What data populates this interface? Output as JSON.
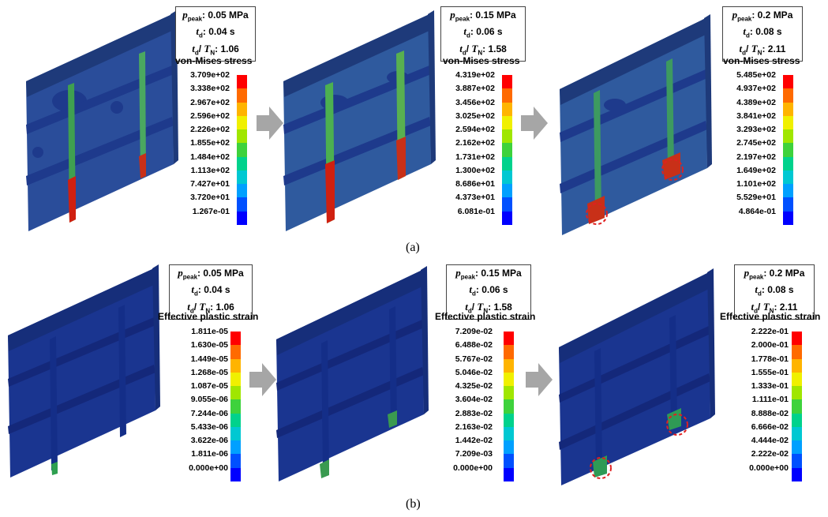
{
  "colors": {
    "scale": [
      "#ff0000",
      "#ff6a00",
      "#ffb400",
      "#f0f000",
      "#a0e600",
      "#3ed23c",
      "#00d28c",
      "#00c8d2",
      "#00a0ff",
      "#0050ff",
      "#0000ff"
    ],
    "structure": "#1e3a7a",
    "arrow": "#a6a6a6",
    "highlight": "#e02020"
  },
  "rows": [
    {
      "caption": "(a)",
      "legend_title": "von-Mises stress",
      "panels": [
        {
          "p_label": "p",
          "p_sub": "peak",
          "p_value": ": 0.05 MPa",
          "td_label": "t",
          "td_sub": "d",
          "td_value": ": 0.04 s",
          "ratio_label": "t",
          "ratio_sub": "d",
          "ratio_sep": "/ ",
          "ratio_label2": "T",
          "ratio_sub2": "N",
          "ratio_value": ": 1.06",
          "ticks": [
            "3.709e+02",
            "3.338e+02",
            "2.967e+02",
            "2.596e+02",
            "2.226e+02",
            "1.855e+02",
            "1.484e+02",
            "1.113e+02",
            "7.427e+01",
            "3.720e+01",
            "1.267e-01"
          ]
        },
        {
          "p_label": "p",
          "p_sub": "peak",
          "p_value": ": 0.15 MPa",
          "td_label": "t",
          "td_sub": "d",
          "td_value": ": 0.06 s",
          "ratio_label": "t",
          "ratio_sub": "d",
          "ratio_sep": "/ ",
          "ratio_label2": "T",
          "ratio_sub2": "N",
          "ratio_value": ": 1.58",
          "ticks": [
            "4.319e+02",
            "3.887e+02",
            "3.456e+02",
            "3.025e+02",
            "2.594e+02",
            "2.162e+02",
            "1.731e+02",
            "1.300e+02",
            "8.686e+01",
            "4.373e+01",
            "6.081e-01"
          ]
        },
        {
          "p_label": "p",
          "p_sub": "peak",
          "p_value": ": 0.2 MPa",
          "td_label": "t",
          "td_sub": "d",
          "td_value": ": 0.08 s",
          "ratio_label": "t",
          "ratio_sub": "d",
          "ratio_sep": "/ ",
          "ratio_label2": "T",
          "ratio_sub2": "N",
          "ratio_value": ": 2.11",
          "ticks": [
            "5.485e+02",
            "4.937e+02",
            "4.389e+02",
            "3.841e+02",
            "3.293e+02",
            "2.745e+02",
            "2.197e+02",
            "1.649e+02",
            "1.101e+02",
            "5.529e+01",
            "4.864e-01"
          ]
        }
      ]
    },
    {
      "caption": "(b)",
      "legend_title": "Effective plastic strain",
      "panels": [
        {
          "p_label": "p",
          "p_sub": "peak",
          "p_value": ": 0.05 MPa",
          "td_label": "t",
          "td_sub": "d",
          "td_value": ": 0.04 s",
          "ratio_label": "t",
          "ratio_sub": "d",
          "ratio_sep": "/ ",
          "ratio_label2": "T",
          "ratio_sub2": "N",
          "ratio_value": ": 1.06",
          "ticks": [
            "1.811e-05",
            "1.630e-05",
            "1.449e-05",
            "1.268e-05",
            "1.087e-05",
            "9.055e-06",
            "7.244e-06",
            "5.433e-06",
            "3.622e-06",
            "1.811e-06",
            "0.000e+00"
          ]
        },
        {
          "p_label": "p",
          "p_sub": "peak",
          "p_value": ": 0.15 MPa",
          "td_label": "t",
          "td_sub": "d",
          "td_value": ": 0.06 s",
          "ratio_label": "t",
          "ratio_sub": "d",
          "ratio_sep": "/ ",
          "ratio_label2": "T",
          "ratio_sub2": "N",
          "ratio_value": ": 1.58",
          "ticks": [
            "7.209e-02",
            "6.488e-02",
            "5.767e-02",
            "5.046e-02",
            "4.325e-02",
            "3.604e-02",
            "2.883e-02",
            "2.163e-02",
            "1.442e-02",
            "7.209e-03",
            "0.000e+00"
          ]
        },
        {
          "p_label": "p",
          "p_sub": "peak",
          "p_value": ": 0.2 MPa",
          "td_label": "t",
          "td_sub": "d",
          "td_value": ": 0.08 s",
          "ratio_label": "t",
          "ratio_sub": "d",
          "ratio_sep": "/ ",
          "ratio_label2": "T",
          "ratio_sub2": "N",
          "ratio_value": ": 2.11",
          "ticks": [
            "2.222e-01",
            "2.000e-01",
            "1.778e-01",
            "1.555e-01",
            "1.333e-01",
            "1.111e-01",
            "8.888e-02",
            "6.666e-02",
            "4.444e-02",
            "2.222e-02",
            "0.000e+00"
          ]
        }
      ]
    }
  ]
}
